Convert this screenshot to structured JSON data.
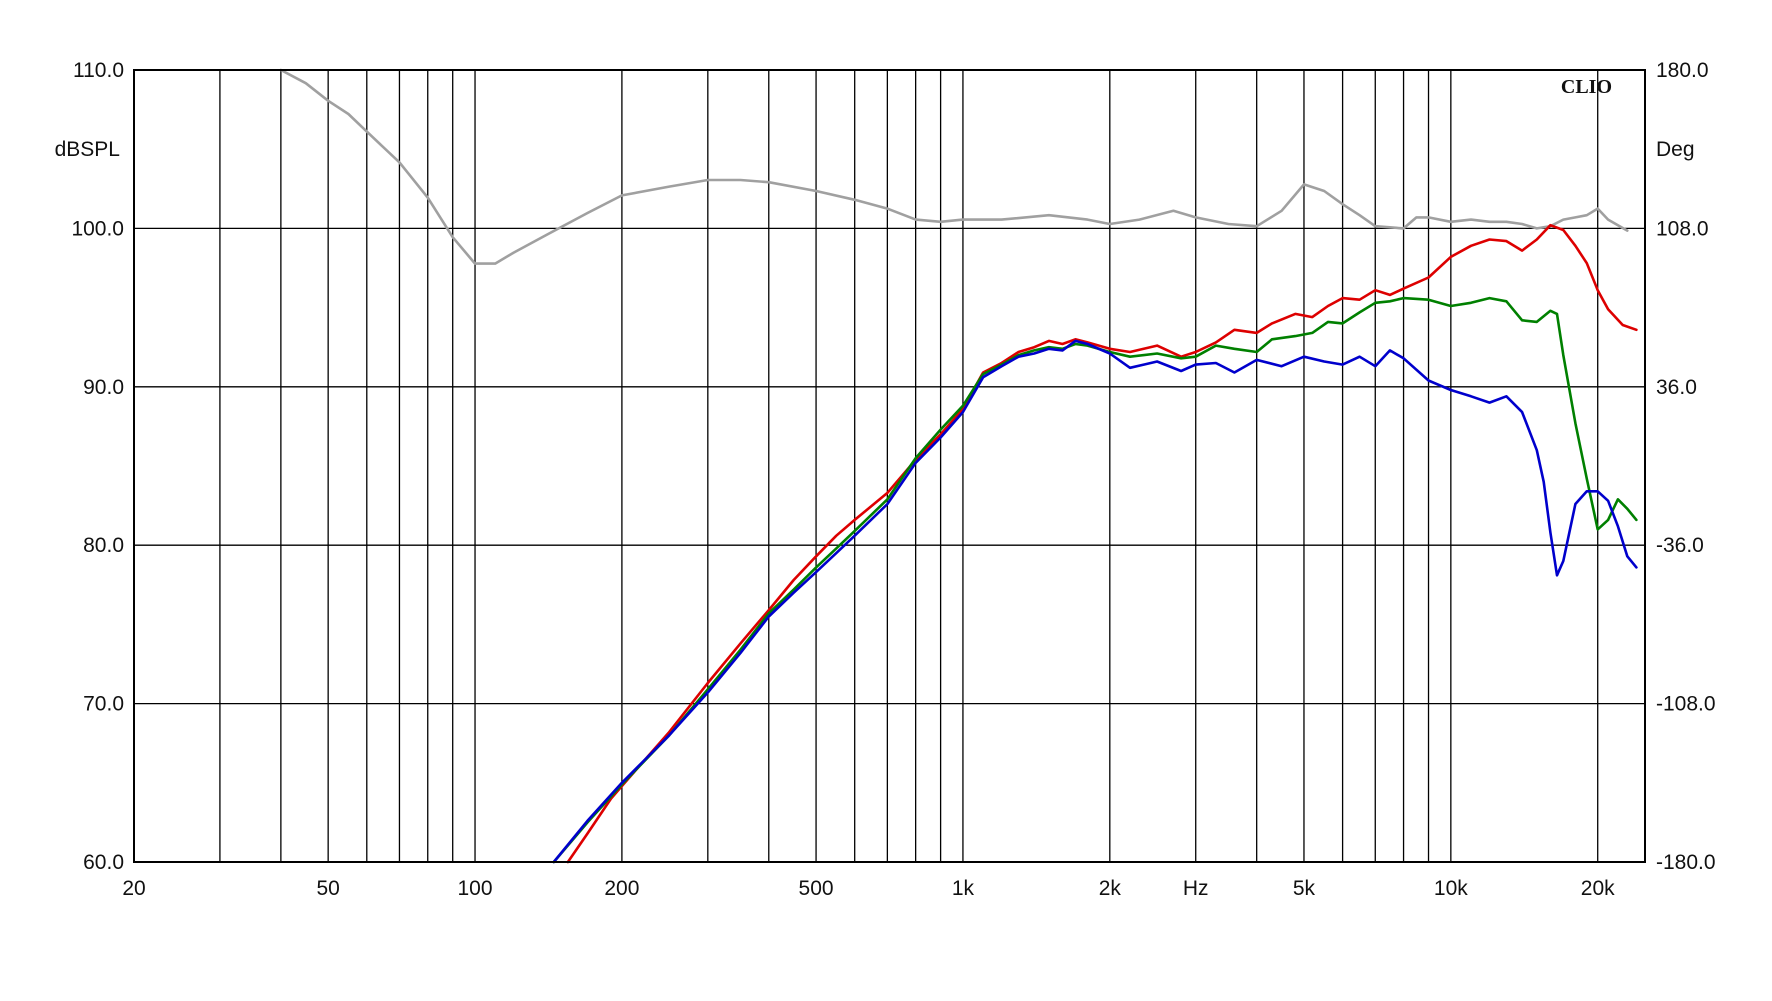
{
  "chart_data": {
    "type": "line",
    "brand": "CLIO",
    "x_scale": "log",
    "xlim": [
      20,
      25000
    ],
    "x_ticks": [
      20,
      50,
      100,
      200,
      500,
      1000,
      2000,
      5000,
      10000,
      20000
    ],
    "x_tick_labels": [
      "20",
      "50",
      "100",
      "200",
      "500",
      "1k",
      "2k",
      "5k",
      "10k",
      "20k"
    ],
    "x_unit_label": "Hz",
    "x_unit_label_position": 3000,
    "y_left": {
      "label": "dBSPL",
      "ylim": [
        60,
        110
      ],
      "ticks": [
        60,
        70,
        80,
        90,
        100,
        110
      ],
      "tick_labels": [
        "60.0",
        "70.0",
        "80.0",
        "90.0",
        "100.0",
        "110.0"
      ]
    },
    "y_right": {
      "label": "Deg",
      "ylim": [
        -180,
        180
      ],
      "ticks": [
        -180,
        -108,
        -36,
        36,
        108,
        180
      ],
      "tick_labels": [
        "-180.0",
        "-108.0",
        "-36.0",
        "36.0",
        "108.0",
        "180.0"
      ]
    },
    "grid": true,
    "series": [
      {
        "color": "#a0a0a0",
        "axis": "right",
        "points": [
          [
            40,
            180
          ],
          [
            45,
            174
          ],
          [
            50,
            166
          ],
          [
            55,
            160
          ],
          [
            60,
            152
          ],
          [
            70,
            138
          ],
          [
            80,
            122
          ],
          [
            90,
            104
          ],
          [
            100,
            92
          ],
          [
            110,
            92
          ],
          [
            120,
            97
          ],
          [
            140,
            105
          ],
          [
            170,
            115
          ],
          [
            200,
            123
          ],
          [
            250,
            127
          ],
          [
            300,
            130
          ],
          [
            350,
            130
          ],
          [
            400,
            129
          ],
          [
            500,
            125
          ],
          [
            600,
            121
          ],
          [
            700,
            117
          ],
          [
            800,
            112
          ],
          [
            900,
            111
          ],
          [
            1000,
            112
          ],
          [
            1200,
            112
          ],
          [
            1500,
            114
          ],
          [
            1800,
            112
          ],
          [
            2000,
            110
          ],
          [
            2300,
            112
          ],
          [
            2700,
            116
          ],
          [
            3000,
            113
          ],
          [
            3500,
            110
          ],
          [
            4000,
            109
          ],
          [
            4500,
            116
          ],
          [
            5000,
            128
          ],
          [
            5500,
            125
          ],
          [
            6000,
            119
          ],
          [
            6500,
            114
          ],
          [
            7000,
            109
          ],
          [
            8000,
            108
          ],
          [
            8500,
            113
          ],
          [
            9000,
            113
          ],
          [
            10000,
            111
          ],
          [
            11000,
            112
          ],
          [
            12000,
            111
          ],
          [
            13000,
            111
          ],
          [
            14000,
            110
          ],
          [
            15000,
            108
          ],
          [
            16000,
            109
          ],
          [
            17000,
            112
          ],
          [
            18000,
            113
          ],
          [
            19000,
            114
          ],
          [
            20000,
            117
          ],
          [
            21000,
            112
          ],
          [
            23000,
            107
          ]
        ]
      },
      {
        "color": "#dd0000",
        "axis": "left",
        "points": [
          [
            155,
            60
          ],
          [
            170,
            61.8
          ],
          [
            190,
            64
          ],
          [
            200,
            64.8
          ],
          [
            250,
            68.2
          ],
          [
            300,
            71.3
          ],
          [
            350,
            73.8
          ],
          [
            400,
            75.9
          ],
          [
            450,
            77.8
          ],
          [
            500,
            79.3
          ],
          [
            550,
            80.6
          ],
          [
            600,
            81.6
          ],
          [
            700,
            83.3
          ],
          [
            800,
            85.4
          ],
          [
            900,
            87.0
          ],
          [
            1000,
            88.6
          ],
          [
            1100,
            90.9
          ],
          [
            1200,
            91.5
          ],
          [
            1300,
            92.2
          ],
          [
            1400,
            92.5
          ],
          [
            1500,
            92.9
          ],
          [
            1600,
            92.7
          ],
          [
            1700,
            93.0
          ],
          [
            1800,
            92.8
          ],
          [
            2000,
            92.4
          ],
          [
            2200,
            92.2
          ],
          [
            2500,
            92.6
          ],
          [
            2800,
            91.9
          ],
          [
            3000,
            92.2
          ],
          [
            3300,
            92.8
          ],
          [
            3600,
            93.6
          ],
          [
            4000,
            93.4
          ],
          [
            4300,
            94.0
          ],
          [
            4800,
            94.6
          ],
          [
            5200,
            94.4
          ],
          [
            5600,
            95.1
          ],
          [
            6000,
            95.6
          ],
          [
            6500,
            95.5
          ],
          [
            7000,
            96.1
          ],
          [
            7500,
            95.8
          ],
          [
            8000,
            96.2
          ],
          [
            9000,
            96.9
          ],
          [
            10000,
            98.2
          ],
          [
            11000,
            98.9
          ],
          [
            12000,
            99.3
          ],
          [
            13000,
            99.2
          ],
          [
            14000,
            98.6
          ],
          [
            15000,
            99.3
          ],
          [
            16000,
            100.2
          ],
          [
            17000,
            99.9
          ],
          [
            18000,
            98.9
          ],
          [
            19000,
            97.8
          ],
          [
            20000,
            96.1
          ],
          [
            21000,
            94.9
          ],
          [
            22500,
            93.9
          ],
          [
            24000,
            93.6
          ]
        ]
      },
      {
        "color": "#008000",
        "axis": "left",
        "points": [
          [
            145,
            60
          ],
          [
            170,
            62.5
          ],
          [
            200,
            64.9
          ],
          [
            250,
            68.0
          ],
          [
            300,
            70.9
          ],
          [
            350,
            73.4
          ],
          [
            400,
            75.7
          ],
          [
            450,
            77.2
          ],
          [
            500,
            78.6
          ],
          [
            550,
            79.8
          ],
          [
            600,
            80.9
          ],
          [
            700,
            82.9
          ],
          [
            800,
            85.5
          ],
          [
            900,
            87.3
          ],
          [
            1000,
            88.8
          ],
          [
            1100,
            90.8
          ],
          [
            1200,
            91.4
          ],
          [
            1300,
            92.0
          ],
          [
            1400,
            92.3
          ],
          [
            1500,
            92.5
          ],
          [
            1600,
            92.4
          ],
          [
            1700,
            92.7
          ],
          [
            1800,
            92.6
          ],
          [
            2000,
            92.2
          ],
          [
            2200,
            91.9
          ],
          [
            2500,
            92.1
          ],
          [
            2800,
            91.8
          ],
          [
            3000,
            91.9
          ],
          [
            3300,
            92.6
          ],
          [
            3600,
            92.4
          ],
          [
            4000,
            92.2
          ],
          [
            4300,
            93.0
          ],
          [
            4800,
            93.2
          ],
          [
            5200,
            93.4
          ],
          [
            5600,
            94.1
          ],
          [
            6000,
            94.0
          ],
          [
            6500,
            94.7
          ],
          [
            7000,
            95.3
          ],
          [
            7500,
            95.4
          ],
          [
            8000,
            95.6
          ],
          [
            9000,
            95.5
          ],
          [
            10000,
            95.1
          ],
          [
            11000,
            95.3
          ],
          [
            12000,
            95.6
          ],
          [
            13000,
            95.4
          ],
          [
            14000,
            94.2
          ],
          [
            15000,
            94.1
          ],
          [
            16000,
            94.8
          ],
          [
            16500,
            94.6
          ],
          [
            17000,
            92.0
          ],
          [
            18000,
            87.7
          ],
          [
            19000,
            84.2
          ],
          [
            20000,
            81.0
          ],
          [
            21000,
            81.6
          ],
          [
            22000,
            82.9
          ],
          [
            23000,
            82.3
          ],
          [
            24000,
            81.6
          ]
        ]
      },
      {
        "color": "#0000cc",
        "axis": "left",
        "points": [
          [
            145,
            60
          ],
          [
            170,
            62.6
          ],
          [
            200,
            65.0
          ],
          [
            250,
            68.0
          ],
          [
            300,
            70.7
          ],
          [
            350,
            73.2
          ],
          [
            400,
            75.5
          ],
          [
            450,
            77.0
          ],
          [
            500,
            78.3
          ],
          [
            550,
            79.5
          ],
          [
            600,
            80.6
          ],
          [
            700,
            82.6
          ],
          [
            800,
            85.2
          ],
          [
            900,
            86.8
          ],
          [
            1000,
            88.4
          ],
          [
            1100,
            90.6
          ],
          [
            1200,
            91.3
          ],
          [
            1300,
            91.9
          ],
          [
            1400,
            92.1
          ],
          [
            1500,
            92.4
          ],
          [
            1600,
            92.3
          ],
          [
            1700,
            92.9
          ],
          [
            1800,
            92.7
          ],
          [
            2000,
            92.1
          ],
          [
            2200,
            91.2
          ],
          [
            2500,
            91.6
          ],
          [
            2800,
            91.0
          ],
          [
            3000,
            91.4
          ],
          [
            3300,
            91.5
          ],
          [
            3600,
            90.9
          ],
          [
            4000,
            91.7
          ],
          [
            4500,
            91.3
          ],
          [
            5000,
            91.9
          ],
          [
            5500,
            91.6
          ],
          [
            6000,
            91.4
          ],
          [
            6500,
            91.9
          ],
          [
            7000,
            91.3
          ],
          [
            7500,
            92.3
          ],
          [
            8000,
            91.8
          ],
          [
            9000,
            90.4
          ],
          [
            10000,
            89.8
          ],
          [
            11000,
            89.4
          ],
          [
            12000,
            89.0
          ],
          [
            13000,
            89.4
          ],
          [
            14000,
            88.4
          ],
          [
            15000,
            86.0
          ],
          [
            15500,
            84.0
          ],
          [
            16000,
            80.8
          ],
          [
            16500,
            78.1
          ],
          [
            17000,
            79.0
          ],
          [
            18000,
            82.6
          ],
          [
            19000,
            83.4
          ],
          [
            20000,
            83.4
          ],
          [
            21000,
            82.8
          ],
          [
            22000,
            81.2
          ],
          [
            23000,
            79.3
          ],
          [
            24000,
            78.6
          ]
        ]
      }
    ]
  }
}
